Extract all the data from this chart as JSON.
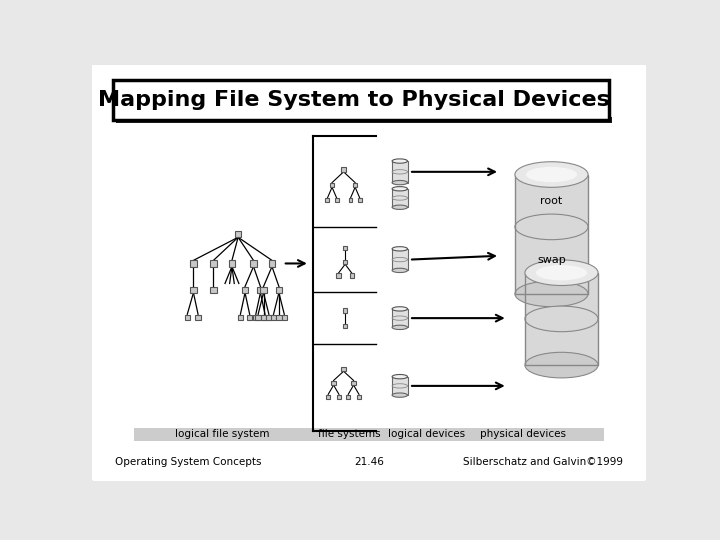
{
  "title": "Mapping File System to Physical Devices",
  "footer_left": "Operating System Concepts",
  "footer_center": "21.46",
  "footer_right": "Silberschatz and Galvin©1999",
  "label_lfs": "logical file system",
  "label_fs": "file systems",
  "label_ld": "logical devices",
  "label_pd": "physical devices",
  "bg_color": "#e8e8e8",
  "slide_bg": "#ffffff",
  "border_color": "#000000",
  "title_bg": "#ffffff",
  "node_color": "#c8c8c8",
  "node_edge": "#555555"
}
